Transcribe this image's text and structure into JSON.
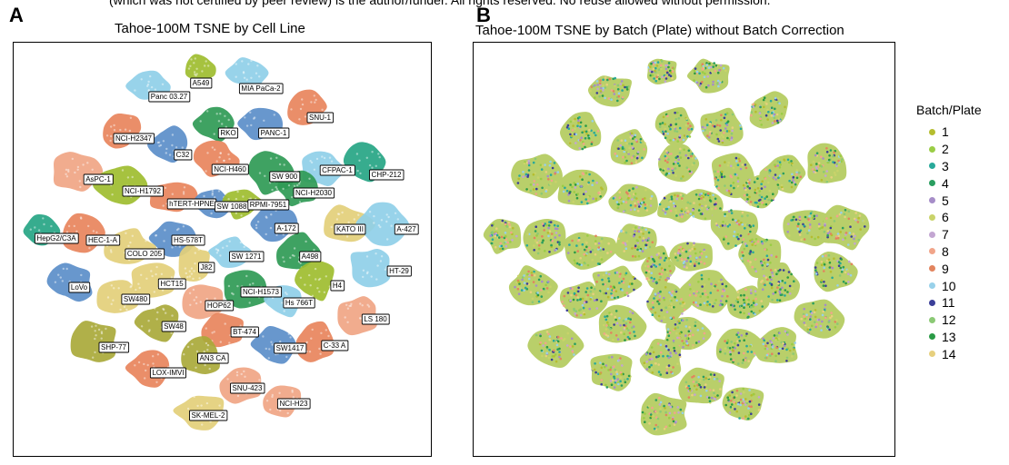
{
  "header_text": "(which was not certified by peer review) is the author/funder. All rights reserved. No reuse allowed without permission.",
  "panel_a": {
    "letter": "A",
    "title": "Tahoe-100M TSNE by Cell Line"
  },
  "panel_b": {
    "letter": "B",
    "title": "Tahoe-100M TSNE by Batch (Plate) without Batch Correction"
  },
  "legend": {
    "title": "Batch/Plate",
    "items": [
      {
        "label": "1",
        "color": "#b5bd2f"
      },
      {
        "label": "2",
        "color": "#9acd45"
      },
      {
        "label": "3",
        "color": "#28a99a"
      },
      {
        "label": "4",
        "color": "#2a9e60"
      },
      {
        "label": "5",
        "color": "#a68dc8"
      },
      {
        "label": "6",
        "color": "#c9d36a"
      },
      {
        "label": "7",
        "color": "#c3a6d2"
      },
      {
        "label": "8",
        "color": "#f1a58a"
      },
      {
        "label": "9",
        "color": "#e2845e"
      },
      {
        "label": "10",
        "color": "#98d1ea"
      },
      {
        "label": "11",
        "color": "#3b3f99"
      },
      {
        "label": "12",
        "color": "#8bc975"
      },
      {
        "label": "13",
        "color": "#2a9a45"
      },
      {
        "label": "14",
        "color": "#e7d07e"
      }
    ]
  },
  "chart_data": [
    {
      "type": "scatter",
      "title": "Tahoe-100M TSNE by Cell Line",
      "xlabel": "",
      "ylabel": "",
      "grid": false,
      "cell_lines": [
        {
          "name": "A549",
          "color": "#9ebd2f"
        },
        {
          "name": "MIA PaCa-2",
          "color": "#8fcfe8"
        },
        {
          "name": "Panc 03.27",
          "color": "#8fcfe8"
        },
        {
          "name": "SNU-1",
          "color": "#e8845c"
        },
        {
          "name": "RKO",
          "color": "#2f9a55"
        },
        {
          "name": "PANC-1",
          "color": "#5b8ec9"
        },
        {
          "name": "NCI-H2347",
          "color": "#e8845c"
        },
        {
          "name": "C32",
          "color": "#5b8ec9"
        },
        {
          "name": "NCI-H460",
          "color": "#e8845c"
        },
        {
          "name": "CFPAC-1",
          "color": "#8fcfe8"
        },
        {
          "name": "CHP-212",
          "color": "#26a584"
        },
        {
          "name": "SW 900",
          "color": "#2f9a55"
        },
        {
          "name": "AsPC-1",
          "color": "#f0a584"
        },
        {
          "name": "NCI-H1792",
          "color": "#9ebd2f"
        },
        {
          "name": "NCI-H2030",
          "color": "#2f9a55"
        },
        {
          "name": "hTERT-HPNE",
          "color": "#e8845c"
        },
        {
          "name": "SW 1088",
          "color": "#5b8ec9"
        },
        {
          "name": "RPMI-7951",
          "color": "#9ebd2f"
        },
        {
          "name": "KATO III",
          "color": "#e3cf7a"
        },
        {
          "name": "A-427",
          "color": "#8fcfe8"
        },
        {
          "name": "HepG2/C3A",
          "color": "#26a584"
        },
        {
          "name": "HEC-1-A",
          "color": "#e8845c"
        },
        {
          "name": "HS-578T",
          "color": "#5b8ec9"
        },
        {
          "name": "A-172",
          "color": "#5b8ec9"
        },
        {
          "name": "COLO 205",
          "color": "#e3cf7a"
        },
        {
          "name": "SW 1271",
          "color": "#8fcfe8"
        },
        {
          "name": "A498",
          "color": "#2f9a55"
        },
        {
          "name": "HT-29",
          "color": "#8fcfe8"
        },
        {
          "name": "LoVo",
          "color": "#5b8ec9"
        },
        {
          "name": "J82",
          "color": "#e3cf7a"
        },
        {
          "name": "HCT15",
          "color": "#e3cf7a"
        },
        {
          "name": "H4",
          "color": "#9ebd2f"
        },
        {
          "name": "SW480",
          "color": "#e3cf7a"
        },
        {
          "name": "NCI-H1573",
          "color": "#2f9a55"
        },
        {
          "name": "Hs 766T",
          "color": "#8fcfe8"
        },
        {
          "name": "HOP62",
          "color": "#f0a584"
        },
        {
          "name": "LS 180",
          "color": "#f0a584"
        },
        {
          "name": "SW48",
          "color": "#a9a93a"
        },
        {
          "name": "BT-474",
          "color": "#e8845c"
        },
        {
          "name": "SHP-77",
          "color": "#a9a93a"
        },
        {
          "name": "SW1417",
          "color": "#5b8ec9"
        },
        {
          "name": "C-33 A",
          "color": "#e8845c"
        },
        {
          "name": "AN3 CA",
          "color": "#a9a93a"
        },
        {
          "name": "LOX-IMVI",
          "color": "#e8845c"
        },
        {
          "name": "SNU-423",
          "color": "#f0a584"
        },
        {
          "name": "NCI-H23",
          "color": "#f0a584"
        },
        {
          "name": "SK-MEL-2",
          "color": "#e3cf7a"
        }
      ]
    },
    {
      "type": "scatter",
      "title": "Tahoe-100M TSNE by Batch (Plate) without Batch Correction",
      "xlabel": "",
      "ylabel": "",
      "grid": false,
      "legend_title": "Batch/Plate",
      "legend_position": "right",
      "series": [
        {
          "name": "1"
        },
        {
          "name": "2"
        },
        {
          "name": "3"
        },
        {
          "name": "4"
        },
        {
          "name": "5"
        },
        {
          "name": "6"
        },
        {
          "name": "7"
        },
        {
          "name": "8"
        },
        {
          "name": "9"
        },
        {
          "name": "10"
        },
        {
          "name": "11"
        },
        {
          "name": "12"
        },
        {
          "name": "13"
        },
        {
          "name": "14"
        }
      ]
    }
  ]
}
